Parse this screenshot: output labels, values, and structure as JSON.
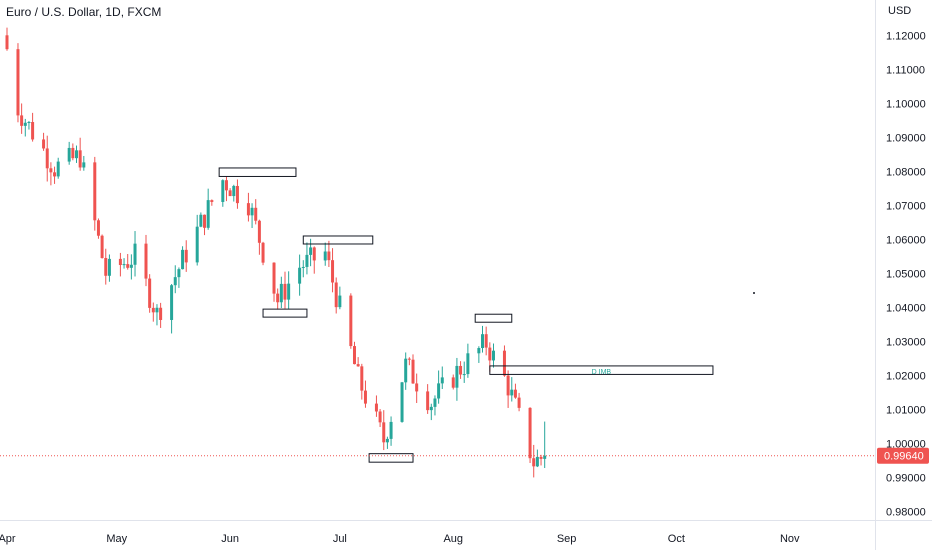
{
  "header": {
    "title": "Euro / U.S. Dollar, 1D, FXCM",
    "currency": "USD"
  },
  "colors": {
    "up": "#26a69a",
    "down": "#ef5350",
    "price_line": "#ef5350",
    "price_badge": "#ef5350",
    "axis_text": "#131722",
    "box_text": "#26a69a"
  },
  "chart_data": {
    "type": "candlestick",
    "symbol": "Euro / U.S. Dollar",
    "interval": "1D",
    "source": "FXCM",
    "y_axis": {
      "ticks": [
        "1.12000",
        "1.11000",
        "1.10000",
        "1.09000",
        "1.08000",
        "1.07000",
        "1.06000",
        "1.05000",
        "1.04000",
        "1.03000",
        "1.02000",
        "1.01000",
        "1.00000",
        "0.99000",
        "0.98000"
      ],
      "range": [
        0.9775,
        1.1245
      ],
      "side": "right"
    },
    "x_axis": {
      "range": [
        "2022-04-01",
        "2022-11-12"
      ],
      "ticks": [
        {
          "label": "Apr",
          "date": "2022-04-01"
        },
        {
          "label": "May",
          "date": "2022-05-01"
        },
        {
          "label": "Jun",
          "date": "2022-06-01"
        },
        {
          "label": "Jul",
          "date": "2022-07-01"
        },
        {
          "label": "Aug",
          "date": "2022-08-01"
        },
        {
          "label": "Sep",
          "date": "2022-09-01"
        },
        {
          "label": "Oct",
          "date": "2022-10-01"
        },
        {
          "label": "Nov",
          "date": "2022-11-01"
        }
      ]
    },
    "last_price": {
      "label": "0.99640",
      "value": 0.9964
    },
    "anchors": [
      {
        "date": "2022-04-01",
        "close": 1.116
      },
      {
        "date": "2022-04-04",
        "close": 1.0985
      },
      {
        "date": "2022-04-14",
        "close": 1.081
      },
      {
        "date": "2022-04-21",
        "close": 1.0845
      },
      {
        "date": "2022-04-28",
        "close": 1.05
      },
      {
        "date": "2022-05-06",
        "close": 1.055
      },
      {
        "date": "2022-05-12",
        "close": 1.038
      },
      {
        "date": "2022-05-20",
        "close": 1.056
      },
      {
        "date": "2022-05-30",
        "close": 1.0775
      },
      {
        "date": "2022-06-06",
        "close": 1.071
      },
      {
        "date": "2022-06-14",
        "close": 1.042
      },
      {
        "date": "2022-06-20",
        "close": 1.052
      },
      {
        "date": "2022-06-27",
        "close": 1.056
      },
      {
        "date": "2022-07-06",
        "close": 1.019
      },
      {
        "date": "2022-07-13",
        "close": 1.001
      },
      {
        "date": "2022-07-19",
        "close": 1.023
      },
      {
        "date": "2022-07-26",
        "close": 1.012
      },
      {
        "date": "2022-08-02",
        "close": 1.021
      },
      {
        "date": "2022-08-10",
        "close": 1.0295
      },
      {
        "date": "2022-08-16",
        "close": 1.017
      },
      {
        "date": "2022-08-23",
        "close": 0.9945
      },
      {
        "date": "2022-08-26",
        "close": 0.9964
      }
    ],
    "boxes": [
      {
        "from": "2022-05-29",
        "to": "2022-06-19",
        "y_low": 1.0785,
        "y_high": 1.081,
        "label": ""
      },
      {
        "from": "2022-06-10",
        "to": "2022-06-22",
        "y_low": 1.0375,
        "y_high": 1.0395,
        "label": ""
      },
      {
        "from": "2022-06-21",
        "to": "2022-07-10",
        "y_low": 1.059,
        "y_high": 1.061,
        "label": ""
      },
      {
        "from": "2022-07-09",
        "to": "2022-07-21",
        "y_low": 0.9945,
        "y_high": 0.997,
        "label": ""
      },
      {
        "from": "2022-08-07",
        "to": "2022-08-17",
        "y_low": 1.036,
        "y_high": 1.038,
        "label": ""
      },
      {
        "from": "2022-08-11",
        "to": "2022-10-11",
        "y_low": 1.0203,
        "y_high": 1.0228,
        "label": "D IMB"
      }
    ],
    "grid": false,
    "legend": "none"
  }
}
